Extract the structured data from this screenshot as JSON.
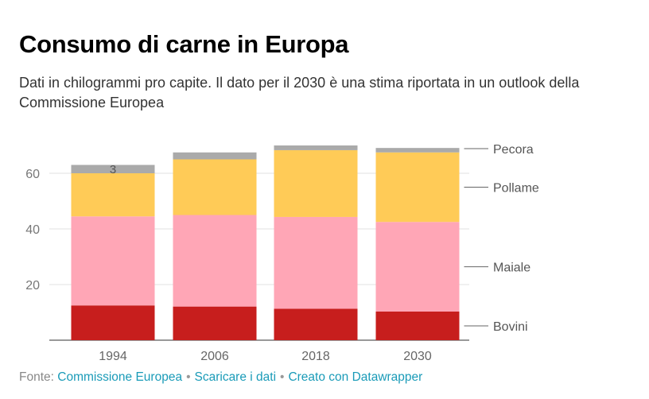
{
  "title": "Consumo di carne in Europa",
  "subtitle": "Dati in chilogrammi pro capite. Il dato per il 2030 è una stima riportata in un outlook della Commissione Europea",
  "footer": {
    "source_label": "Fonte:",
    "source_link": "Commissione Europea",
    "download_link": "Scaricare i dati",
    "created_link": "Creato con Datawrapper",
    "separator": "•"
  },
  "chart_data": {
    "type": "bar",
    "stacked": true,
    "categories": [
      "1994",
      "2006",
      "2018",
      "2030"
    ],
    "series": [
      {
        "name": "Bovini",
        "color": "#c71e1d",
        "values": [
          12.5,
          12.1,
          11.3,
          10.3
        ]
      },
      {
        "name": "Maiale",
        "color": "#ffa6b6",
        "values": [
          32,
          32.9,
          33,
          32.2
        ]
      },
      {
        "name": "Pollame",
        "color": "#ffcb57",
        "values": [
          15.5,
          20,
          24,
          25
        ]
      },
      {
        "name": "Pecora",
        "color": "#aaaaaa",
        "values": [
          3,
          2.5,
          1.7,
          1.6
        ]
      }
    ],
    "value_labels": [
      {
        "category": "1994",
        "series": "Pecora",
        "text": "3"
      }
    ],
    "yticks": [
      20,
      40,
      60
    ],
    "ylim": [
      0,
      70
    ],
    "xlabel": "",
    "ylabel": ""
  }
}
